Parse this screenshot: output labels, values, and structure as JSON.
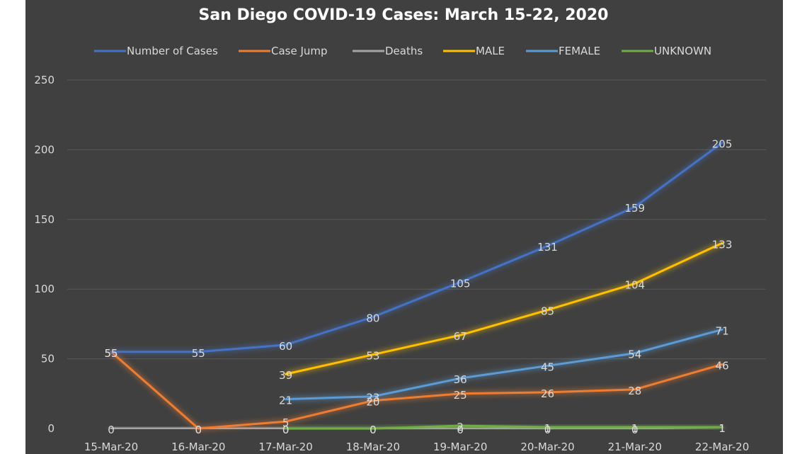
{
  "chart_data": {
    "type": "line",
    "title": "San Diego COVID-19 Cases: March 15-22, 2020",
    "xlabel": "",
    "ylabel": "",
    "categories": [
      "15-Mar-20",
      "16-Mar-20",
      "17-Mar-20",
      "18-Mar-20",
      "19-Mar-20",
      "20-Mar-20",
      "21-Mar-20",
      "22-Mar-20"
    ],
    "ylim": [
      0,
      250
    ],
    "yticks": [
      "0",
      "50",
      "100",
      "150",
      "200",
      "250"
    ],
    "grid": true,
    "legend_position": "top",
    "series": [
      {
        "name": "Number of Cases",
        "color": "#4472c4",
        "values": [
          55,
          55,
          60,
          80,
          105,
          131,
          159,
          205
        ]
      },
      {
        "name": "Case Jump",
        "color": "#ed7d31",
        "values": [
          55,
          0,
          5,
          20,
          25,
          26,
          28,
          46
        ]
      },
      {
        "name": "Deaths",
        "color": "#a5a5a5",
        "values": [
          0,
          0,
          0,
          0,
          0,
          0,
          0,
          1
        ]
      },
      {
        "name": "MALE",
        "color": "#ffc000",
        "values": [
          null,
          null,
          39,
          53,
          67,
          85,
          104,
          133
        ]
      },
      {
        "name": "FEMALE",
        "color": "#5b9bd5",
        "values": [
          null,
          null,
          21,
          23,
          36,
          45,
          54,
          71
        ]
      },
      {
        "name": "UNKNOWN",
        "color": "#70ad47",
        "values": [
          null,
          null,
          0,
          0,
          2,
          1,
          1,
          1
        ]
      }
    ]
  }
}
